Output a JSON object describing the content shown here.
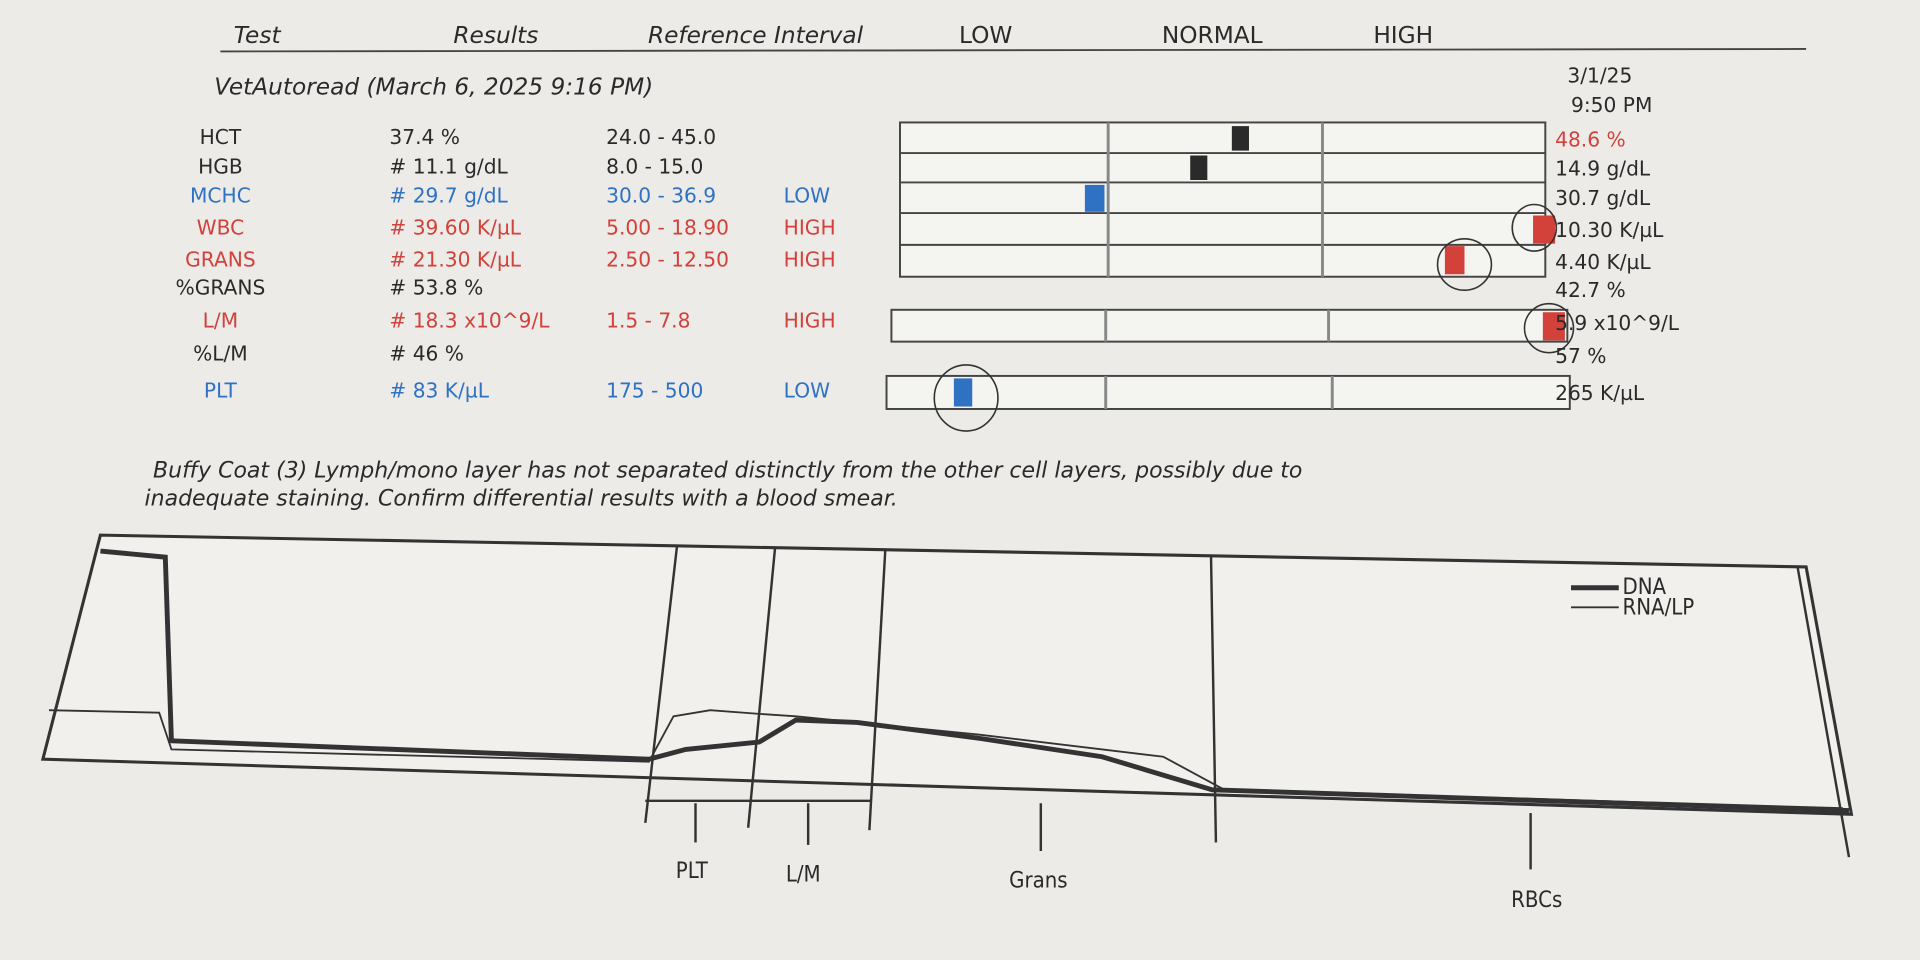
{
  "header": {
    "columns": [
      "Test",
      "Results",
      "Reference Interval",
      "LOW",
      "NORMAL",
      "HIGH"
    ],
    "title": "VetAutoread (March 6, 2025 9:16 PM)"
  },
  "previous": {
    "date": "3/1/25",
    "time": "9:50 PM"
  },
  "rows": [
    {
      "test": "HCT",
      "result": "37.4 %",
      "reference": "24.0 - 45.0",
      "previous": "48.6 %"
    },
    {
      "test": "HGB",
      "result": "# 11.1 g/dL",
      "reference": "8.0 - 15.0",
      "previous": "14.9 g/dL"
    },
    {
      "test": "MCHC",
      "result": "# 29.7 g/dL",
      "reference": "30.0 - 36.9",
      "flag": "LOW",
      "previous": "30.7 g/dL"
    },
    {
      "test": "WBC",
      "result": "# 39.60 K/µL",
      "reference": "5.00 - 18.90",
      "flag": "HIGH",
      "previous": "10.30 K/µL"
    },
    {
      "test": "GRANS",
      "result": "# 21.30 K/µL",
      "reference": "2.50 - 12.50",
      "flag": "HIGH",
      "previous": "4.40 K/µL"
    },
    {
      "test": "%GRANS",
      "result": "# 53.8 %",
      "previous": "42.7 %"
    },
    {
      "test": "L/M",
      "result": "# 18.3 x10^9/L",
      "reference": "1.5 - 7.8",
      "flag": "HIGH",
      "previous": "5.9 x10^9/L"
    },
    {
      "test": "%L/M",
      "result": "# 46 %",
      "previous": "57 %"
    },
    {
      "test": "PLT",
      "result": "# 83 K/µL",
      "reference": "175 - 500",
      "flag": "LOW",
      "previous": "265 K/µL"
    }
  ],
  "note": [
    "Buffy Coat (3)  Lymph/mono layer has not separated distinctly from the other cell  layers, possibly due to",
    "inadequate staining.  Confirm differential  results with a blood smear."
  ],
  "graph": {
    "legend": [
      "DNA",
      "RNA/LP"
    ],
    "regions": [
      "PLT",
      "L/M",
      "Grans",
      "RBCs"
    ]
  }
}
